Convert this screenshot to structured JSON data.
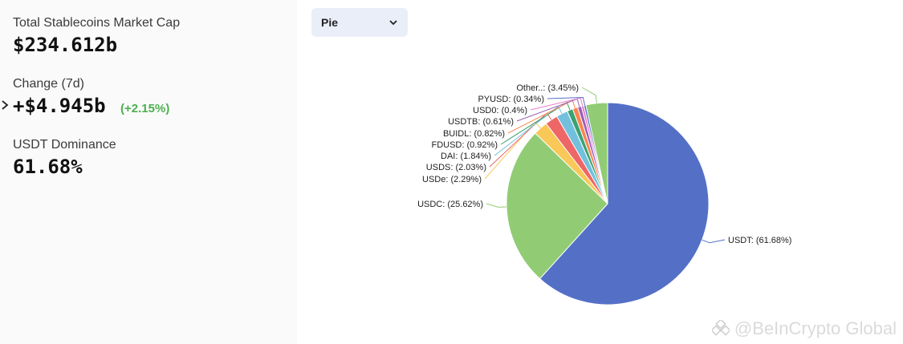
{
  "stats": {
    "market_cap": {
      "label": "Total Stablecoins Market Cap",
      "value": "$234.612b"
    },
    "change": {
      "label": "Change (7d)",
      "value": "+$4.945b",
      "percent": "(+2.15%)",
      "percent_color": "#4caf50"
    },
    "dominance": {
      "label": "USDT Dominance",
      "value": "61.68%"
    }
  },
  "chart_type_selector": {
    "selected": "Pie"
  },
  "watermark": "@BeInCrypto Global",
  "chart_data": {
    "type": "pie",
    "slices": [
      {
        "name": "USDT",
        "value": 61.68,
        "label": "USDT: (61.68%)",
        "color": "#5470c6"
      },
      {
        "name": "USDC",
        "value": 25.62,
        "label": "USDC: (25.62%)",
        "color": "#91cc75"
      },
      {
        "name": "USDe",
        "value": 2.29,
        "label": "USDe: (2.29%)",
        "color": "#fac858"
      },
      {
        "name": "USDS",
        "value": 2.03,
        "label": "USDS: (2.03%)",
        "color": "#ee6666"
      },
      {
        "name": "DAI",
        "value": 1.84,
        "label": "DAI: (1.84%)",
        "color": "#73c0de"
      },
      {
        "name": "FDUSD",
        "value": 0.92,
        "label": "FDUSD: (0.92%)",
        "color": "#3ba272"
      },
      {
        "name": "BUIDL",
        "value": 0.82,
        "label": "BUIDL: (0.82%)",
        "color": "#fc8452"
      },
      {
        "name": "USDTB",
        "value": 0.61,
        "label": "USDTB: (0.61%)",
        "color": "#9a60b4"
      },
      {
        "name": "USD0",
        "value": 0.4,
        "label": "USD0: (0.4%)",
        "color": "#ea7ccc"
      },
      {
        "name": "PYUSD",
        "value": 0.34,
        "label": "PYUSD: (0.34%)",
        "color": "#5470c6"
      },
      {
        "name": "Other..",
        "value": 3.45,
        "label": "Other..: (3.45%)",
        "color": "#91cc75"
      }
    ]
  }
}
